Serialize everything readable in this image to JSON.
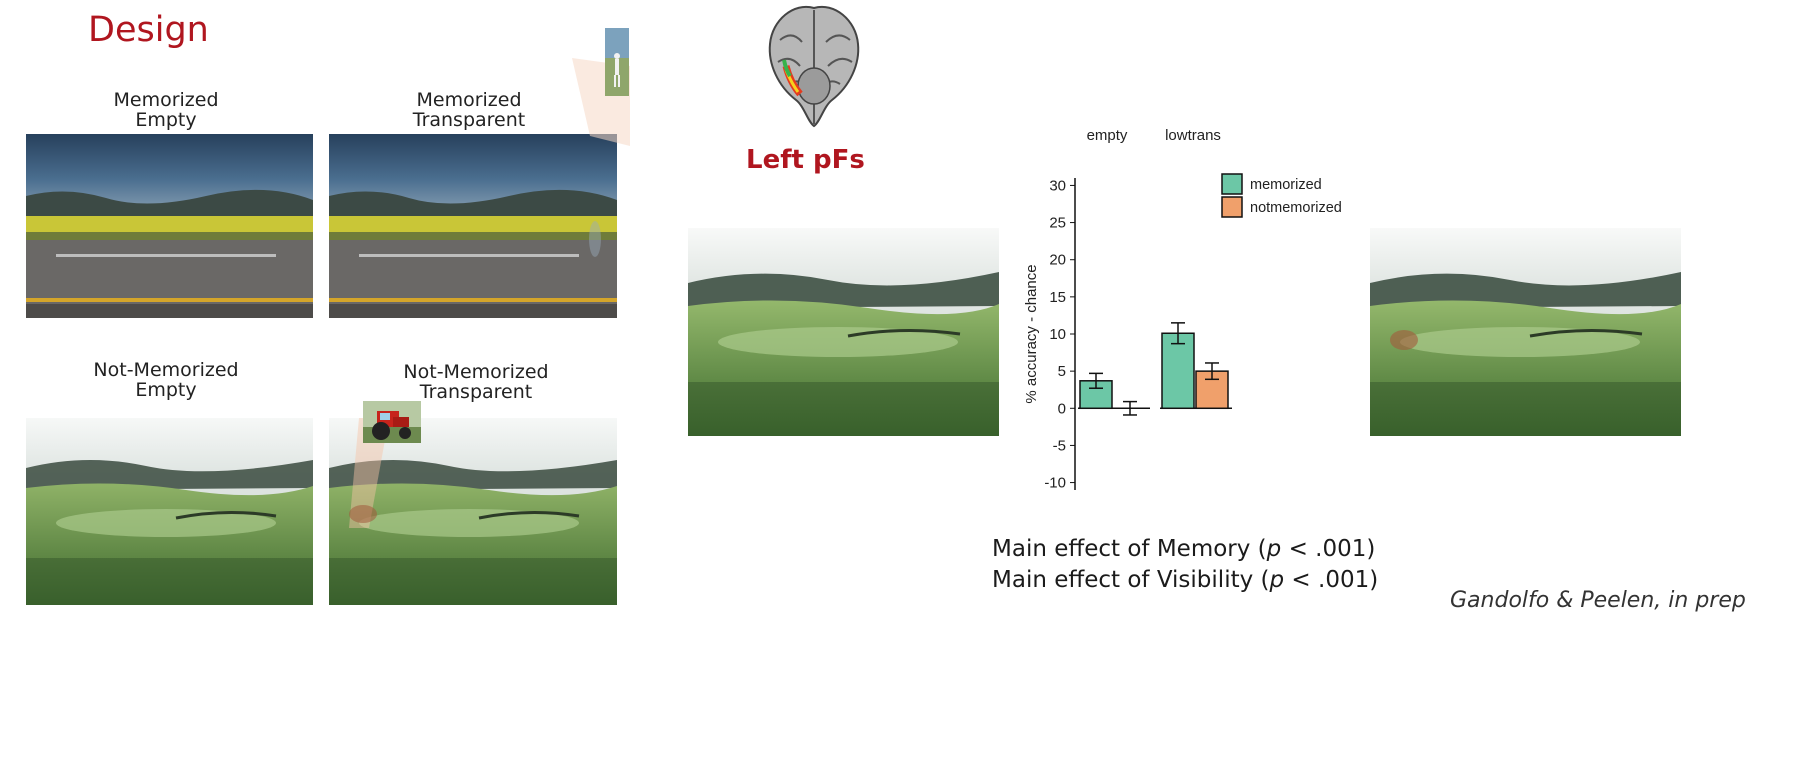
{
  "slide": {
    "title": "Design",
    "conditions": [
      {
        "line1": "Memorized",
        "line2": "Empty"
      },
      {
        "line1": "Memorized",
        "line2": "Transparent"
      },
      {
        "line1": "Not-Memorized",
        "line2": "Empty"
      },
      {
        "line1": "Not-Memorized",
        "line2": "Transparent"
      }
    ],
    "region_label": "Left pFs",
    "effects": [
      {
        "prefix": "Main effect of Memory (",
        "p": "p",
        "suffix": " < .001)"
      },
      {
        "prefix": "Main effect of Visibility (",
        "p": "p",
        "suffix": " < .001)"
      }
    ],
    "citation": "Gandolfo & Peelen, in prep",
    "icons": [
      "brain-scan-icon",
      "tractor-icon",
      "person-icon"
    ]
  },
  "chart_data": {
    "type": "bar",
    "categories": [
      "empty",
      "lowtrans"
    ],
    "series": [
      {
        "name": "memorized",
        "color": "#6cc7a6",
        "values": [
          3.7,
          10.1
        ],
        "errors": [
          1.0,
          1.4
        ]
      },
      {
        "name": "notmemorized",
        "color": "#f0a06b",
        "values": [
          0,
          5.0
        ],
        "errors": [
          0.9,
          1.1
        ]
      }
    ],
    "ylabel": "% accuracy - chance",
    "ylim": [
      -11,
      31
    ],
    "yticks": [
      30,
      25,
      20,
      15,
      10,
      5,
      0,
      -5,
      -10
    ],
    "legend_position": "top-right",
    "grid": false
  }
}
